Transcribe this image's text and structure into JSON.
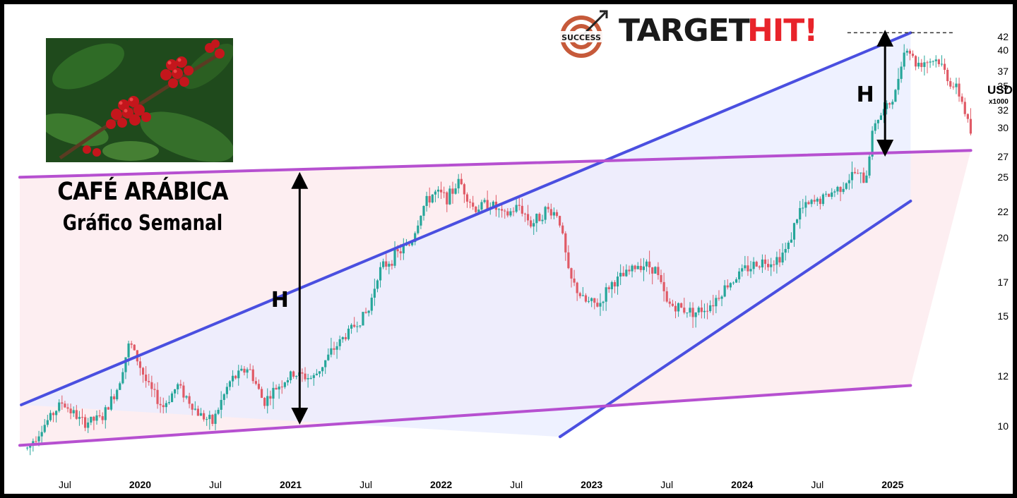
{
  "title": "CAFÉ ARÁBICA",
  "subtitle": "Gráfico Semanal",
  "logo": {
    "word1": "TARGET",
    "word2": "HIT!",
    "badge": "SUCCESS",
    "icon": "target-arrow-icon"
  },
  "colors": {
    "channel": "#4a4fe0",
    "range": "#b650d0",
    "up": "#26a69a",
    "down": "#e05a66",
    "bg_channel": "#e8ecff",
    "bg_range": "#fdecef"
  },
  "chart_data": {
    "type": "candlestick",
    "title": "CAFÉ ARÁBICA",
    "subtitle": "Gráfico Semanal",
    "ylabel": "USD",
    "ylabel_sub": "x1000",
    "ylim": [
      9,
      44
    ],
    "yticks": [
      10,
      12,
      15,
      17,
      20,
      22,
      25,
      27,
      30,
      32,
      35,
      37,
      40,
      42
    ],
    "ytick_labels": [
      "10",
      "12",
      "15",
      "17",
      "20",
      "22",
      "25",
      "27",
      "30",
      "32",
      "35",
      "37",
      "40",
      "42"
    ],
    "xticks": [
      {
        "t": 2019.5,
        "label": "Jul"
      },
      {
        "t": 2020.0,
        "label": "2020"
      },
      {
        "t": 2020.5,
        "label": "Jul"
      },
      {
        "t": 2021.0,
        "label": "2021"
      },
      {
        "t": 2021.5,
        "label": "Jul"
      },
      {
        "t": 2022.0,
        "label": "2022"
      },
      {
        "t": 2022.5,
        "label": "Jul"
      },
      {
        "t": 2023.0,
        "label": "2023"
      },
      {
        "t": 2023.5,
        "label": "Jul"
      },
      {
        "t": 2024.0,
        "label": "2024"
      },
      {
        "t": 2024.5,
        "label": "Jul"
      },
      {
        "t": 2025.0,
        "label": "2025"
      }
    ],
    "xlim": [
      2019.2,
      2025.55
    ],
    "price_path": [
      [
        2019.25,
        9.2
      ],
      [
        2019.4,
        10.3
      ],
      [
        2019.48,
        10.9
      ],
      [
        2019.62,
        10.1
      ],
      [
        2019.75,
        10.3
      ],
      [
        2019.85,
        11.5
      ],
      [
        2019.93,
        13.6
      ],
      [
        2020.05,
        11.6
      ],
      [
        2020.15,
        10.7
      ],
      [
        2020.25,
        11.6
      ],
      [
        2020.38,
        10.5
      ],
      [
        2020.48,
        10.1
      ],
      [
        2020.6,
        11.8
      ],
      [
        2020.72,
        12.4
      ],
      [
        2020.82,
        10.9
      ],
      [
        2020.92,
        11.6
      ],
      [
        2021.02,
        12.1
      ],
      [
        2021.15,
        11.9
      ],
      [
        2021.3,
        13.4
      ],
      [
        2021.45,
        14.7
      ],
      [
        2021.52,
        15.3
      ],
      [
        2021.58,
        17.6
      ],
      [
        2021.7,
        18.8
      ],
      [
        2021.8,
        19.6
      ],
      [
        2021.88,
        22.4
      ],
      [
        2021.95,
        23.6
      ],
      [
        2022.05,
        23.2
      ],
      [
        2022.12,
        24.7
      ],
      [
        2022.22,
        22.2
      ],
      [
        2022.32,
        22.8
      ],
      [
        2022.42,
        21.6
      ],
      [
        2022.52,
        22.5
      ],
      [
        2022.6,
        21.0
      ],
      [
        2022.7,
        22.2
      ],
      [
        2022.78,
        21.8
      ],
      [
        2022.85,
        17.3
      ],
      [
        2022.95,
        15.8
      ],
      [
        2023.05,
        15.6
      ],
      [
        2023.12,
        16.8
      ],
      [
        2023.22,
        17.4
      ],
      [
        2023.32,
        18.2
      ],
      [
        2023.42,
        17.9
      ],
      [
        2023.5,
        15.7
      ],
      [
        2023.6,
        15.4
      ],
      [
        2023.7,
        15.2
      ],
      [
        2023.8,
        15.7
      ],
      [
        2023.9,
        16.8
      ],
      [
        2024.02,
        17.8
      ],
      [
        2024.12,
        18.3
      ],
      [
        2024.22,
        18.4
      ],
      [
        2024.3,
        19.2
      ],
      [
        2024.38,
        22.1
      ],
      [
        2024.45,
        22.6
      ],
      [
        2024.55,
        23.2
      ],
      [
        2024.65,
        24.1
      ],
      [
        2024.75,
        25.4
      ],
      [
        2024.82,
        24.6
      ],
      [
        2024.85,
        27.8
      ],
      [
        2024.88,
        30.7
      ],
      [
        2024.95,
        32.0
      ],
      [
        2025.02,
        34.0
      ],
      [
        2025.06,
        38.9
      ],
      [
        2025.1,
        40.5
      ],
      [
        2025.15,
        38.0
      ],
      [
        2025.22,
        38.4
      ],
      [
        2025.3,
        38.6
      ],
      [
        2025.38,
        35.6
      ],
      [
        2025.45,
        33.8
      ],
      [
        2025.52,
        29.4
      ]
    ],
    "upper_channel": {
      "from": [
        2019.21,
        10.8
      ],
      "to": [
        2025.12,
        42.6
      ]
    },
    "lower_channel": {
      "from": [
        2022.79,
        9.6
      ],
      "to": [
        2025.12,
        22.9
      ]
    },
    "upper_range": {
      "from": [
        2019.2,
        25.0
      ],
      "to": [
        2025.52,
        27.6
      ]
    },
    "lower_range": {
      "from": [
        2019.2,
        9.3
      ],
      "to": [
        2025.12,
        11.6
      ]
    },
    "measure_arrows": [
      {
        "t": 2021.06,
        "from": 10.2,
        "to": 25.1,
        "label": "H"
      },
      {
        "t": 2024.95,
        "from": 27.4,
        "to": 42.4,
        "label": "H"
      }
    ],
    "target_level": 42.6,
    "annotations": [
      "TARGET HIT!",
      "H",
      "H"
    ]
  }
}
